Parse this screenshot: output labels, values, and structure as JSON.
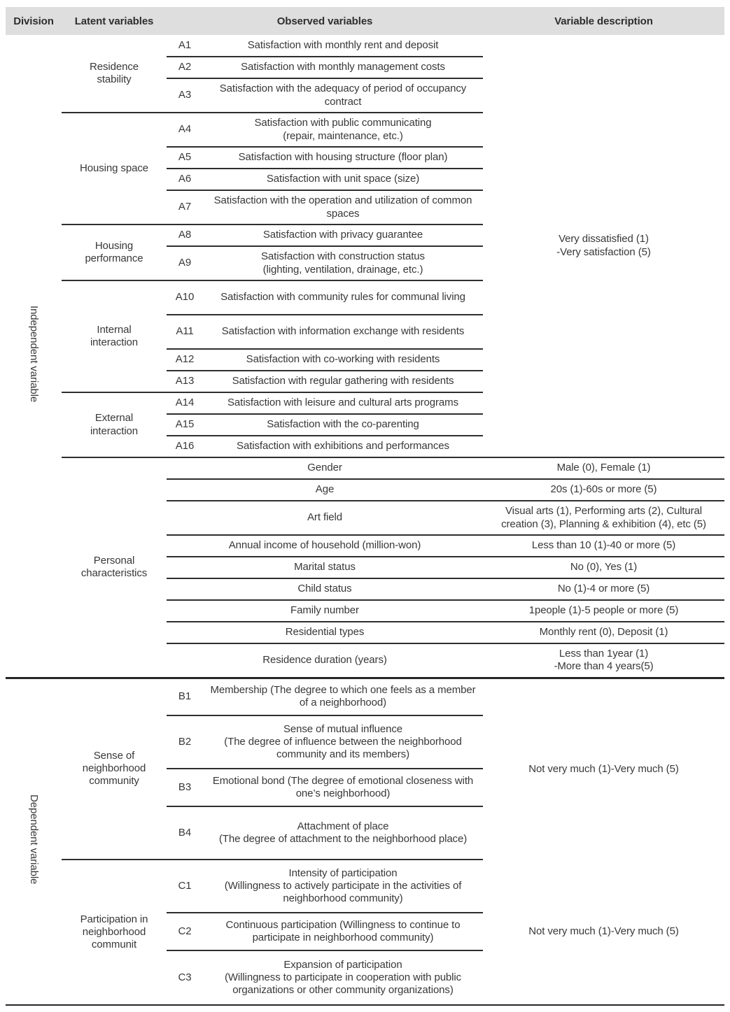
{
  "colors": {
    "header_bg": "#dedede",
    "text": "#333333",
    "line": "#2e2e2e"
  },
  "header": {
    "division": "Division",
    "latent": "Latent variables",
    "observed": "Observed variables",
    "description": "Variable description"
  },
  "independent": {
    "division": "Independent variable",
    "description": "Very dissatisfied (1)\n-Very satisfaction (5)",
    "groups": [
      {
        "latent": "Residence stability",
        "items": [
          {
            "code": "A1",
            "text": "Satisfaction with monthly rent and deposit"
          },
          {
            "code": "A2",
            "text": "Satisfaction with monthly management costs"
          },
          {
            "code": "A3",
            "text": "Satisfaction with the adequacy of period of occupancy contract"
          }
        ]
      },
      {
        "latent": "Housing space",
        "items": [
          {
            "code": "A4",
            "text": "Satisfaction with public communicating\n(repair, maintenance, etc.)"
          },
          {
            "code": "A5",
            "text": "Satisfaction with housing structure (floor plan)"
          },
          {
            "code": "A6",
            "text": "Satisfaction with unit space (size)"
          },
          {
            "code": "A7",
            "text": "Satisfaction with the operation and utilization of common spaces"
          }
        ]
      },
      {
        "latent": "Housing performance",
        "items": [
          {
            "code": "A8",
            "text": "Satisfaction with privacy guarantee"
          },
          {
            "code": "A9",
            "text": "Satisfaction with construction status\n(lighting, ventilation, drainage, etc.)"
          }
        ]
      },
      {
        "latent": "Internal interaction",
        "items": [
          {
            "code": "A10",
            "text": "Satisfaction with community rules for communal living"
          },
          {
            "code": "A11",
            "text": "Satisfaction with information exchange with residents"
          },
          {
            "code": "A12",
            "text": "Satisfaction with co-working with residents"
          },
          {
            "code": "A13",
            "text": "Satisfaction with regular gathering with residents"
          }
        ]
      },
      {
        "latent": "External interaction",
        "items": [
          {
            "code": "A14",
            "text": "Satisfaction with leisure and cultural arts programs"
          },
          {
            "code": "A15",
            "text": "Satisfaction with the co-parenting"
          },
          {
            "code": "A16",
            "text": "Satisfaction with exhibitions and performances"
          }
        ]
      }
    ],
    "personal": {
      "latent": "Personal characteristics",
      "rows": [
        {
          "observed": "Gender",
          "description": "Male (0), Female (1)"
        },
        {
          "observed": "Age",
          "description": "20s (1)-60s or more (5)"
        },
        {
          "observed": "Art field",
          "description": "Visual arts (1), Performing arts (2), Cultural creation (3), Planning & exhibition (4), etc (5)"
        },
        {
          "observed": "Annual income of household (million-won)",
          "description": "Less than 10 (1)-40 or more (5)"
        },
        {
          "observed": "Marital status",
          "description": "No (0), Yes (1)"
        },
        {
          "observed": "Child status",
          "description": "No (1)-4 or more (5)"
        },
        {
          "observed": "Family number",
          "description": "1people (1)-5 people or more (5)"
        },
        {
          "observed": "Residential types",
          "description": "Monthly rent (0), Deposit (1)"
        },
        {
          "observed": "Residence duration (years)",
          "description": "Less than 1year (1)\n-More than 4 years(5)"
        }
      ]
    }
  },
  "dependent": {
    "division": "Dependent variable",
    "groups": [
      {
        "latent": "Sense of neighborhood community",
        "description": "Not very much (1)-Very much (5)",
        "items": [
          {
            "code": "B1",
            "text": "Membership (The degree to which one feels as a member of a neighborhood)"
          },
          {
            "code": "B2",
            "text": "Sense of mutual influence\n(The degree of influence between the neighborhood community and its members)"
          },
          {
            "code": "B3",
            "text": "Emotional bond (The degree of emotional closeness with one’s neighborhood)"
          },
          {
            "code": "B4",
            "text": "Attachment of place\n(The degree of attachment to the neighborhood place)"
          }
        ]
      },
      {
        "latent": "Participation in neighborhood communit",
        "description": "Not very much (1)-Very much (5)",
        "items": [
          {
            "code": "C1",
            "text": "Intensity of participation\n(Willingness to actively participate in the activities of neighborhood community)"
          },
          {
            "code": "C2",
            "text": "Continuous participation (Willingness to continue to participate in neighborhood community)"
          },
          {
            "code": "C3",
            "text": "Expansion of participation\n(Willingness to participate in cooperation with public organizations or other community organizations)"
          }
        ]
      }
    ]
  }
}
